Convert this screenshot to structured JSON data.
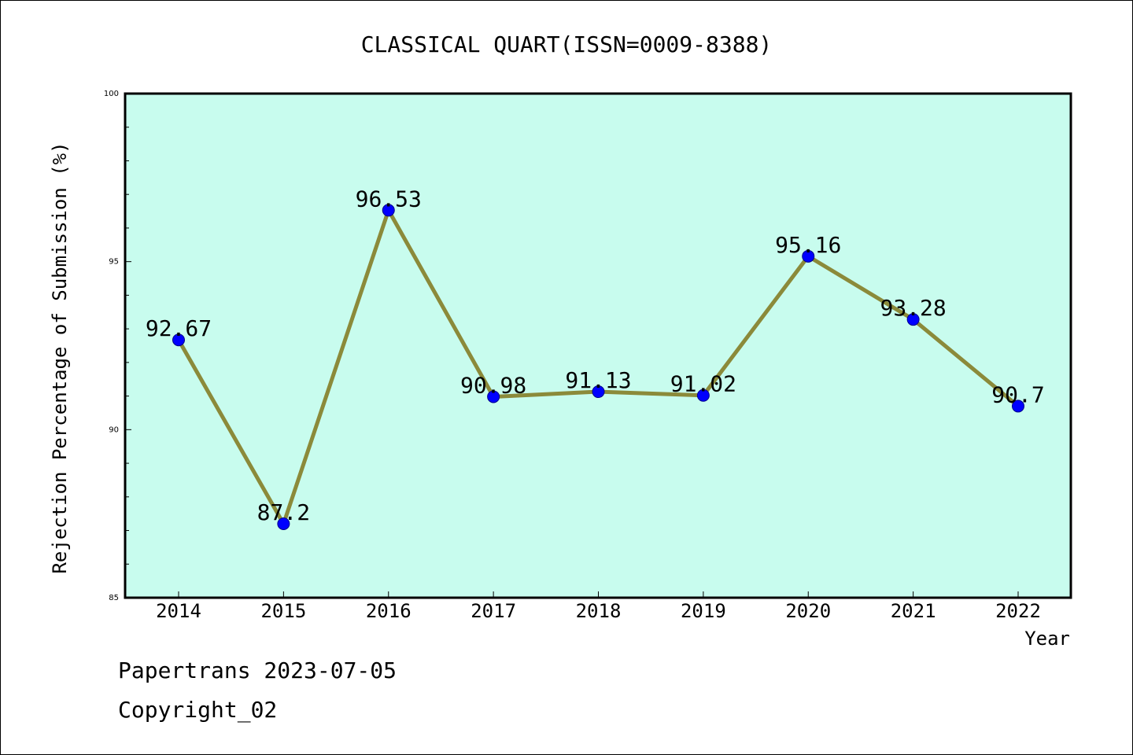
{
  "chart_data": {
    "type": "line",
    "title": "CLASSICAL QUART(ISSN=0009-8388)",
    "xlabel": "Year",
    "ylabel": "Rejection Percentage of Submission (%)",
    "categories": [
      "2014",
      "2015",
      "2016",
      "2017",
      "2018",
      "2019",
      "2020",
      "2021",
      "2022"
    ],
    "values": [
      92.67,
      87.2,
      96.53,
      90.98,
      91.13,
      91.02,
      95.16,
      93.28,
      90.7
    ],
    "data_labels": [
      "92.67",
      "87.2",
      "96.53",
      "90.98",
      "91.13",
      "91.02",
      "95.16",
      "93.28",
      "90.7"
    ],
    "ylim": [
      85,
      100
    ],
    "yticks": [
      "85",
      "90",
      "95",
      "100"
    ],
    "grid": false,
    "colors": {
      "plot_background": "#c8fcee",
      "line": "#8b8a3a",
      "marker": "#0000ff"
    }
  },
  "footer": {
    "line1": "Papertrans 2023-07-05",
    "line2": "Copyright_02"
  }
}
